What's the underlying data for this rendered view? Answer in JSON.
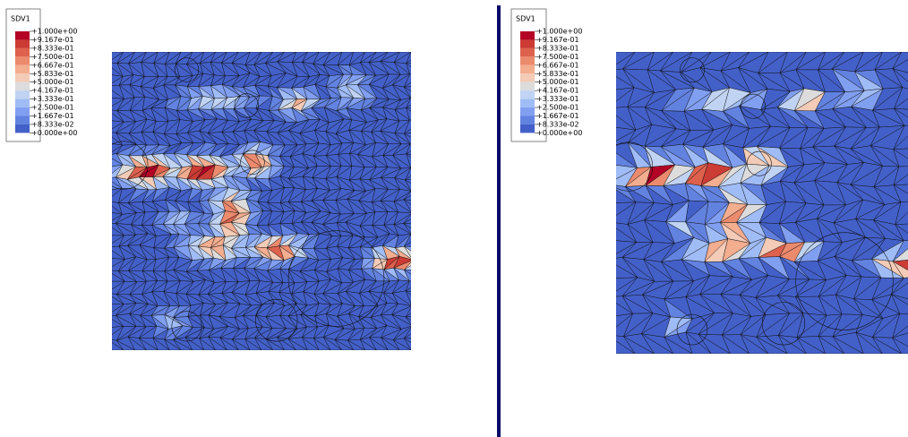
{
  "panels": [
    {
      "legend": {
        "title": "SDV1",
        "labels": [
          "+1.000e+00",
          "+9.167e-01",
          "+8.333e-01",
          "+7.500e-01",
          "+6.667e-01",
          "+5.833e-01",
          "+5.000e-01",
          "+4.167e-01",
          "+3.333e-01",
          "+2.500e-01",
          "+1.667e-01",
          "+8.333e-02",
          "+0.000e+00"
        ]
      }
    },
    {
      "legend": {
        "title": "SDV1",
        "labels": [
          "+1.000e+00",
          "+9.167e-01",
          "+8.333e-01",
          "+7.500e-01",
          "+6.667e-01",
          "+5.833e-01",
          "+5.000e-01",
          "+4.167e-01",
          "+3.333e-01",
          "+2.500e-01",
          "+1.667e-01",
          "+8.333e-02",
          "+0.000e+00"
        ]
      }
    }
  ]
}
